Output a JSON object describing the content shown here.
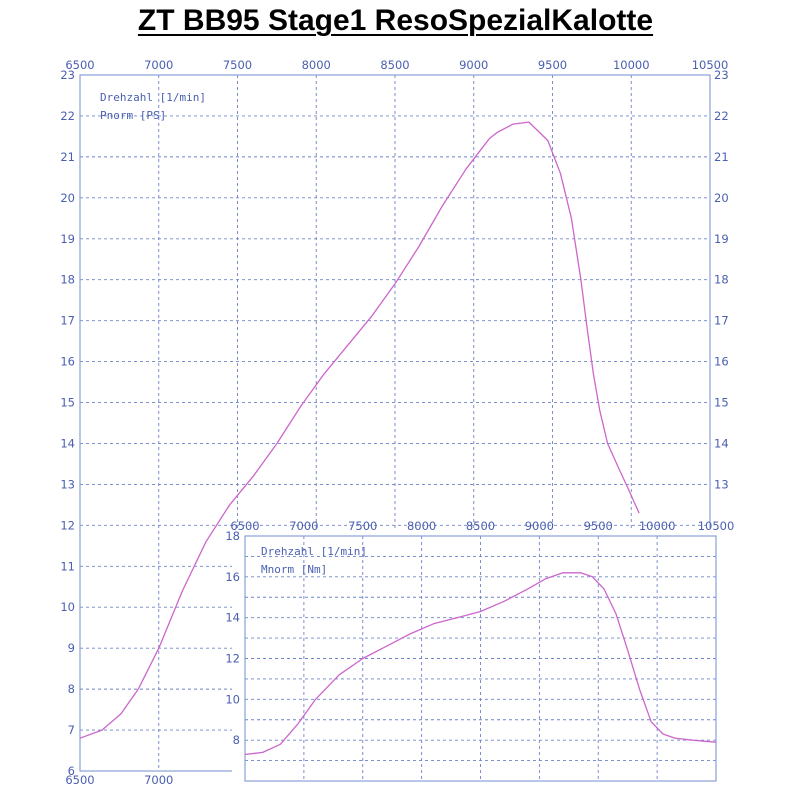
{
  "page_title": "ZT BB95 Stage1 ResoSpezialKalotte",
  "colors": {
    "axis": "#4a5fb0",
    "grid": "#6f83c8",
    "curve": "#cc66cc",
    "frame": "#8aa0d8"
  },
  "chart_data": [
    {
      "type": "line",
      "name": "power",
      "legend": [
        "Drehzahl [1/min]",
        "Pnorm [PS]"
      ],
      "xlim": [
        6500,
        10500
      ],
      "ylim": [
        6,
        23
      ],
      "x_ticks": [
        6500,
        7000,
        7500,
        8000,
        8500,
        9000,
        9500,
        10000,
        10500
      ],
      "y_ticks": [
        6,
        7,
        8,
        9,
        10,
        11,
        12,
        13,
        14,
        15,
        16,
        17,
        18,
        19,
        20,
        21,
        22,
        23
      ],
      "grid": true,
      "series": [
        {
          "x": [
            6500,
            6640,
            6760,
            6870,
            7000,
            7150,
            7300,
            7450,
            7600,
            7750,
            7900,
            8050,
            8200,
            8350,
            8500,
            8650,
            8800,
            8950,
            9050,
            9100,
            9150,
            9250,
            9350,
            9470,
            9550,
            9620,
            9680,
            9720,
            9760,
            9800,
            9850,
            9920,
            9980,
            10050
          ],
          "y": [
            6.8,
            7.0,
            7.4,
            8.0,
            9.0,
            10.4,
            11.6,
            12.5,
            13.2,
            14.0,
            14.9,
            15.7,
            16.4,
            17.1,
            17.9,
            18.8,
            19.8,
            20.7,
            21.2,
            21.45,
            21.6,
            21.8,
            21.85,
            21.4,
            20.6,
            19.5,
            18.0,
            16.8,
            15.7,
            14.8,
            14.0,
            13.4,
            12.9,
            12.3
          ]
        }
      ]
    },
    {
      "type": "line",
      "name": "torque",
      "legend": [
        "Drehzahl [1/min]",
        "Mnorm [Nm]"
      ],
      "xlim": [
        6500,
        10500
      ],
      "ylim": [
        6,
        18
      ],
      "x_ticks": [
        6500,
        7000,
        7500,
        8000,
        8500,
        9000,
        9500,
        10000,
        10500
      ],
      "y_ticks": [
        8,
        10,
        12,
        14,
        16,
        18
      ],
      "grid": true,
      "series": [
        {
          "x": [
            6500,
            6650,
            6800,
            6950,
            7100,
            7300,
            7500,
            7700,
            7900,
            8100,
            8300,
            8500,
            8700,
            8900,
            9050,
            9200,
            9350,
            9450,
            9550,
            9650,
            9750,
            9850,
            9950,
            10050,
            10150,
            10300,
            10500
          ],
          "y": [
            7.3,
            7.4,
            7.8,
            8.8,
            10.0,
            11.2,
            12.0,
            12.6,
            13.2,
            13.7,
            14.0,
            14.3,
            14.8,
            15.4,
            15.9,
            16.2,
            16.2,
            16.0,
            15.4,
            14.2,
            12.4,
            10.5,
            8.9,
            8.3,
            8.1,
            8.0,
            7.9
          ]
        }
      ]
    }
  ]
}
